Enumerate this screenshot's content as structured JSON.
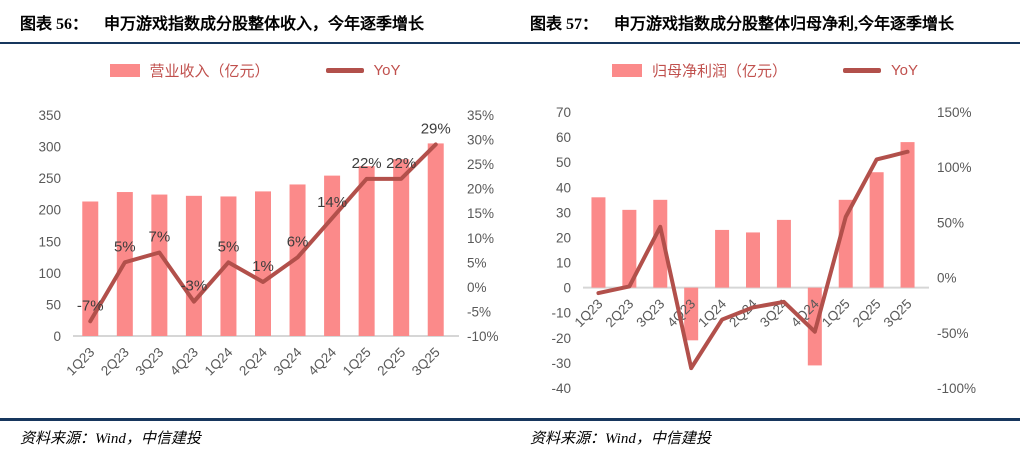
{
  "figures": [
    {
      "label": "图表 56：",
      "title": "申万游戏指数成分股整体收入，今年逐季增长",
      "source": "资料来源：Wind，中信建投"
    },
    {
      "label": "图表 57：",
      "title": "申万游戏指数成分股整体归母净利,今年逐季增长",
      "source": "资料来源：Wind，中信建投"
    }
  ],
  "colors": {
    "bar": "#FB8A8A",
    "line": "#B2504B",
    "legend_text": "#C0504D",
    "axis_text": "#595959",
    "label_text": "#3d3d3d",
    "rule": "#17365D",
    "baseline": "#D6D6D6"
  },
  "chart_data": [
    {
      "type": "bar+line",
      "title": "申万游戏指数成分股整体收入，今年逐季增长",
      "categories": [
        "1Q23",
        "2Q23",
        "3Q23",
        "4Q23",
        "1Q24",
        "2Q24",
        "3Q24",
        "4Q24",
        "1Q25",
        "2Q25",
        "3Q25"
      ],
      "series": [
        {
          "name": "营业收入（亿元）",
          "type": "bar",
          "axis": "left",
          "values": [
            213,
            228,
            224,
            222,
            221,
            229,
            240,
            254,
            269,
            280,
            305
          ]
        },
        {
          "name": "YoY",
          "type": "line",
          "axis": "right",
          "values": [
            -7,
            5,
            7,
            -3,
            5,
            1,
            6,
            14,
            22,
            22,
            29
          ],
          "point_labels": [
            "-7%",
            "5%",
            "7%",
            "-3%",
            "5%",
            "1%",
            "6%",
            "14%",
            "22%",
            "22%",
            "29%"
          ]
        }
      ],
      "left_axis": {
        "min": 0,
        "max": 350,
        "step": 50,
        "format": "number"
      },
      "right_axis": {
        "min": -10,
        "max": 35,
        "step": 5,
        "format": "percent"
      },
      "grid": false,
      "legend_position": "top"
    },
    {
      "type": "bar+line",
      "title": "申万游戏指数成分股整体归母净利,今年逐季增长",
      "categories": [
        "1Q23",
        "2Q23",
        "3Q23",
        "4Q23",
        "1Q24",
        "2Q24",
        "3Q24",
        "4Q24",
        "1Q25",
        "2Q25",
        "3Q25"
      ],
      "series": [
        {
          "name": "归母净利润（亿元）",
          "type": "bar",
          "axis": "left",
          "values": [
            36,
            31,
            35,
            -21,
            23,
            22,
            27,
            -31,
            35,
            46,
            58
          ]
        },
        {
          "name": "YoY",
          "type": "line",
          "axis": "right",
          "values": [
            -14,
            -8,
            46,
            -82,
            -38,
            -27,
            -22,
            -49,
            55,
            107,
            114
          ],
          "point_labels": null
        }
      ],
      "left_axis": {
        "min": -40,
        "max": 70,
        "step": 10,
        "format": "number"
      },
      "right_axis": {
        "min": -100,
        "max": 150,
        "step": 50,
        "format": "percent"
      },
      "grid": false,
      "legend_position": "top"
    }
  ]
}
